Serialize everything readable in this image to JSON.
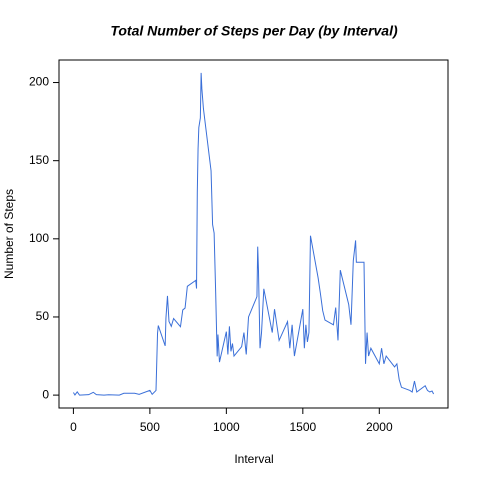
{
  "chart_data": {
    "type": "line",
    "title": "Total Number of Steps per Day (by Interval)",
    "x_label": "Interval",
    "y_label": "Number of Steps",
    "x": [
      0,
      10,
      25,
      40,
      55,
      100,
      130,
      150,
      200,
      230,
      300,
      330,
      400,
      430,
      500,
      515,
      540,
      550,
      555,
      600,
      605,
      615,
      625,
      640,
      655,
      700,
      715,
      730,
      745,
      800,
      805,
      810,
      815,
      820,
      830,
      835,
      840,
      850,
      900,
      910,
      920,
      930,
      935,
      940,
      945,
      955,
      1000,
      1010,
      1020,
      1030,
      1040,
      1050,
      1100,
      1115,
      1130,
      1145,
      1200,
      1205,
      1210,
      1220,
      1230,
      1245,
      1300,
      1315,
      1330,
      1345,
      1400,
      1415,
      1430,
      1445,
      1500,
      1510,
      1520,
      1530,
      1540,
      1550,
      1600,
      1615,
      1630,
      1645,
      1700,
      1715,
      1730,
      1745,
      1800,
      1815,
      1830,
      1845,
      1850,
      1900,
      1910,
      1920,
      1930,
      1945,
      2000,
      2015,
      2030,
      2045,
      2100,
      2115,
      2130,
      2145,
      2200,
      2215,
      2230,
      2245,
      2300,
      2315,
      2330,
      2345,
      2355
    ],
    "series": [
      {
        "name": "Number of Steps",
        "color": "#3a6fd8",
        "values": [
          1.7,
          0.1,
          2.1,
          0,
          0.1,
          0.3,
          1.8,
          0.3,
          0,
          0.2,
          0,
          1.2,
          1.2,
          0.5,
          3,
          0.5,
          3,
          39.5,
          44.5,
          31.5,
          49.3,
          63.5,
          47.1,
          44,
          49,
          43.8,
          54.5,
          55.7,
          69.6,
          73.4,
          68.2,
          129.4,
          157.5,
          171.2,
          177.3,
          206.2,
          195.9,
          183.4,
          143.5,
          109.1,
          103.7,
          66.2,
          45.2,
          24.8,
          38.8,
          21.1,
          40.6,
          26,
          44,
          28,
          33,
          25,
          31,
          40,
          26,
          50,
          63,
          95,
          80,
          30,
          40,
          68,
          40,
          55,
          45,
          35,
          47,
          30,
          45,
          25,
          55,
          30,
          45,
          34,
          40,
          102,
          75,
          65,
          54,
          48,
          45,
          56,
          35,
          80,
          58,
          45,
          86,
          99,
          85,
          85,
          20,
          40,
          25,
          30,
          20,
          30,
          20,
          25,
          18,
          20,
          10,
          5,
          3,
          2,
          9,
          2,
          6,
          3,
          2,
          2.6,
          0.7
        ]
      }
    ],
    "xlim": [
      -94.2,
      2449.2
    ],
    "xticks": [
      0,
      500,
      1000,
      1500,
      2000
    ],
    "ylim": [
      -8.25,
      214.42
    ],
    "yticks": [
      0,
      50,
      100,
      150,
      200
    ],
    "grid": false
  }
}
